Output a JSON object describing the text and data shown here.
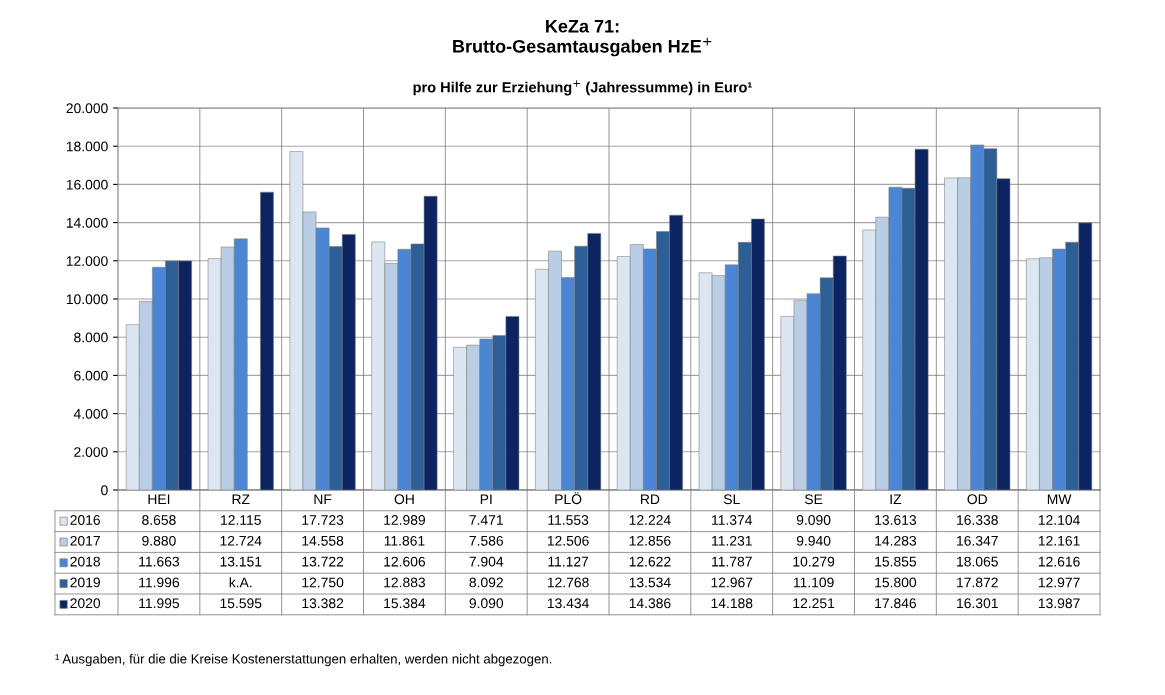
{
  "chart_data": {
    "type": "bar",
    "title": "KeZa 71:\nBrutto-Gesamtausgaben HzE$^{+}$",
    "subtitle": "pro Hilfe zur Erziehung$^{+}$ (Jahressumme) in Euro¹",
    "categories": [
      "HEI",
      "RZ",
      "NF",
      "OH",
      "PI",
      "PLÖ",
      "RD",
      "SL",
      "SE",
      "IZ",
      "OD",
      "MW"
    ],
    "series": [
      {
        "name": "2016",
        "color": "#dce6f2",
        "values": [
          8658,
          12115,
          17723,
          12989,
          7471,
          11553,
          12224,
          11374,
          9090,
          13613,
          16338,
          12104
        ],
        "value_labels": [
          "8.658",
          "12.115",
          "17.723",
          "12.989",
          "7.471",
          "11.553",
          "12.224",
          "11.374",
          "9.090",
          "13.613",
          "16.338",
          "12.104"
        ]
      },
      {
        "name": "2017",
        "color": "#b9cde5",
        "values": [
          9880,
          12724,
          14558,
          11861,
          7586,
          12506,
          12856,
          11231,
          9940,
          14283,
          16347,
          12161
        ],
        "value_labels": [
          "9.880",
          "12.724",
          "14.558",
          "11.861",
          "7.586",
          "12.506",
          "12.856",
          "11.231",
          "9.940",
          "14.283",
          "16.347",
          "12.161"
        ]
      },
      {
        "name": "2018",
        "color": "#4a86d4",
        "values": [
          11663,
          13151,
          13722,
          12606,
          7904,
          11127,
          12622,
          11787,
          10279,
          15855,
          18065,
          12616
        ],
        "value_labels": [
          "11.663",
          "13.151",
          "13.722",
          "12.606",
          "7.904",
          "11.127",
          "12.622",
          "11.787",
          "10.279",
          "15.855",
          "18.065",
          "12.616"
        ]
      },
      {
        "name": "2019",
        "color": "#2e5e96",
        "values": [
          11996,
          null,
          12750,
          12883,
          8092,
          12768,
          13534,
          12967,
          11109,
          15800,
          17872,
          12977
        ],
        "value_labels": [
          "11.996",
          "k.A.",
          "12.750",
          "12.883",
          "8.092",
          "12.768",
          "13.534",
          "12.967",
          "11.109",
          "15.800",
          "17.872",
          "12.977"
        ]
      },
      {
        "name": "2020",
        "color": "#0c2461",
        "values": [
          11995,
          15595,
          13382,
          15384,
          9090,
          13434,
          14386,
          14188,
          12251,
          17846,
          16301,
          13987
        ],
        "value_labels": [
          "11.995",
          "15.595",
          "13.382",
          "15.384",
          "9.090",
          "13.434",
          "14.386",
          "14.188",
          "12.251",
          "17.846",
          "16.301",
          "13.987"
        ]
      }
    ],
    "ylim": [
      0,
      20000
    ],
    "yticks": [
      0,
      {
        "value": 2000,
        "label": "2.000"
      },
      {
        "value": 4000,
        "label": "4.000"
      },
      {
        "value": 6000,
        "label": "6.000"
      },
      {
        "value": 8000,
        "label": "8.000"
      },
      {
        "value": 10000,
        "label": "10.000"
      },
      {
        "value": 12000,
        "label": "12.000"
      },
      {
        "value": 14000,
        "label": "14.000"
      },
      {
        "value": 16000,
        "label": "16.000"
      },
      {
        "value": 18000,
        "label": "18.000"
      },
      {
        "value": 20000,
        "label": "20.000"
      }
    ],
    "grid": "y",
    "legend": "bottom",
    "annotations": [
      "¹ Ausgaben, für die die Kreise Kostenerstattungen erhalten, werden nicht abgezogen."
    ]
  }
}
